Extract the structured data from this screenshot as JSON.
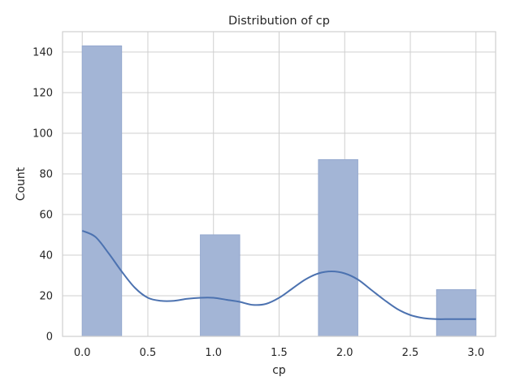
{
  "chart_data": {
    "type": "bar",
    "title": "Distribution of cp",
    "xlabel": "cp",
    "ylabel": "Count",
    "xlim": [
      -0.15,
      3.15
    ],
    "ylim": [
      0,
      150
    ],
    "xticks": [
      0.0,
      0.5,
      1.0,
      1.5,
      2.0,
      2.5,
      3.0
    ],
    "xtick_labels": [
      "0.0",
      "0.5",
      "1.0",
      "1.5",
      "2.0",
      "2.5",
      "3.0"
    ],
    "yticks": [
      0,
      20,
      40,
      60,
      80,
      100,
      120,
      140
    ],
    "ytick_labels": [
      "0",
      "20",
      "40",
      "60",
      "80",
      "100",
      "120",
      "140"
    ],
    "grid": true,
    "bins": [
      {
        "x0": 0.0,
        "x1": 0.3,
        "count": 143
      },
      {
        "x0": 0.3,
        "x1": 0.6,
        "count": 0
      },
      {
        "x0": 0.6,
        "x1": 0.9,
        "count": 0
      },
      {
        "x0": 0.9,
        "x1": 1.2,
        "count": 50
      },
      {
        "x0": 1.2,
        "x1": 1.5,
        "count": 0
      },
      {
        "x0": 1.5,
        "x1": 1.8,
        "count": 0
      },
      {
        "x0": 1.8,
        "x1": 2.1,
        "count": 87
      },
      {
        "x0": 2.1,
        "x1": 2.4,
        "count": 0
      },
      {
        "x0": 2.4,
        "x1": 2.7,
        "count": 0
      },
      {
        "x0": 2.7,
        "x1": 3.0,
        "count": 23
      }
    ],
    "kde": {
      "x": [
        0.0,
        0.1,
        0.2,
        0.3,
        0.4,
        0.5,
        0.6,
        0.7,
        0.8,
        0.9,
        1.0,
        1.1,
        1.2,
        1.3,
        1.4,
        1.5,
        1.6,
        1.7,
        1.8,
        1.9,
        2.0,
        2.1,
        2.2,
        2.3,
        2.4,
        2.5,
        2.6,
        2.7,
        2.8,
        2.9,
        3.0
      ],
      "y": [
        52,
        49,
        41,
        32,
        24,
        19,
        17.5,
        17.5,
        18.5,
        19,
        19,
        18,
        17,
        15.5,
        16,
        19,
        23.5,
        28,
        31,
        32,
        31,
        28,
        23,
        18,
        13.5,
        10.5,
        9,
        8.5,
        8.5,
        8.5,
        8.5
      ]
    },
    "colors": {
      "bar_fill": "#a3b5d6",
      "bar_edge": "#95a9cf",
      "kde_line": "#4c72b0",
      "grid": "#cfcfcf",
      "text": "#262626"
    }
  }
}
